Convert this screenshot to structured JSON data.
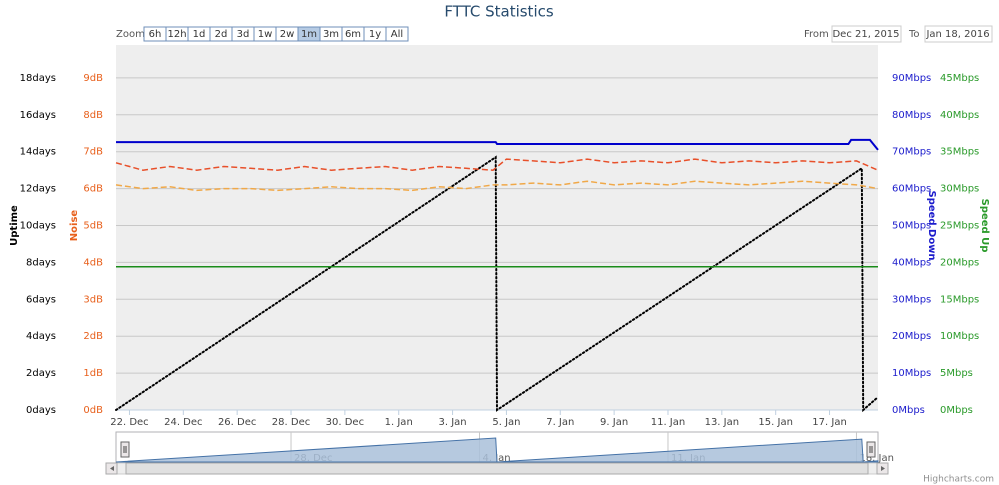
{
  "chart_data": {
    "type": "line",
    "title": "FTTC Statistics",
    "zoom": {
      "label": "Zoom",
      "buttons": [
        "6h",
        "12h",
        "1d",
        "2d",
        "3d",
        "1w",
        "2w",
        "1m",
        "3m",
        "6m",
        "1y",
        "All"
      ],
      "selected": 7
    },
    "range": {
      "from_label": "From",
      "from": "Dec 21, 2015",
      "to_label": "To",
      "to": "Jan 18, 2016"
    },
    "credits": "Highcharts.com",
    "xlim": [
      0.5,
      28.8
    ],
    "xticks": [
      {
        "value": 1,
        "label": "22. Dec"
      },
      {
        "value": 3,
        "label": "24. Dec"
      },
      {
        "value": 5,
        "label": "26. Dec"
      },
      {
        "value": 7,
        "label": "28. Dec"
      },
      {
        "value": 9,
        "label": "30. Dec"
      },
      {
        "value": 11,
        "label": "1. Jan"
      },
      {
        "value": 13,
        "label": "3. Jan"
      },
      {
        "value": 15,
        "label": "5. Jan"
      },
      {
        "value": 17,
        "label": "7. Jan"
      },
      {
        "value": 19,
        "label": "9. Jan"
      },
      {
        "value": 21,
        "label": "11. Jan"
      },
      {
        "value": 23,
        "label": "13. Jan"
      },
      {
        "value": 25,
        "label": "15. Jan"
      },
      {
        "value": 27,
        "label": "17. Jan"
      }
    ],
    "y_label": "Uptime",
    "y_color": "#000000",
    "ylim": [
      0,
      20
    ],
    "yticks": [
      {
        "value": 0,
        "label": "0days"
      },
      {
        "value": 2,
        "label": "2days"
      },
      {
        "value": 4,
        "label": "4days"
      },
      {
        "value": 6,
        "label": "6days"
      },
      {
        "value": 8,
        "label": "8days"
      },
      {
        "value": 10,
        "label": "10days"
      },
      {
        "value": 12,
        "label": "12days"
      },
      {
        "value": 14,
        "label": "14days"
      },
      {
        "value": 16,
        "label": "16days"
      },
      {
        "value": 18,
        "label": "18days"
      }
    ],
    "y2_label": "Noise",
    "y2_color": "#e8601c",
    "y2lim": [
      0,
      10
    ],
    "y2ticks": [
      {
        "value": 0,
        "label": "0dB"
      },
      {
        "value": 1,
        "label": "1dB"
      },
      {
        "value": 2,
        "label": "2dB"
      },
      {
        "value": 3,
        "label": "3dB"
      },
      {
        "value": 4,
        "label": "4dB"
      },
      {
        "value": 5,
        "label": "5dB"
      },
      {
        "value": 6,
        "label": "6dB"
      },
      {
        "value": 7,
        "label": "7dB"
      },
      {
        "value": 8,
        "label": "8dB"
      },
      {
        "value": 9,
        "label": "9dB"
      }
    ],
    "y3_label": "Speed Down",
    "y3_color": "#1c1ccc",
    "y3lim": [
      0,
      100
    ],
    "y3ticks": [
      {
        "value": 0,
        "label": "0Mbps"
      },
      {
        "value": 10,
        "label": "10Mbps"
      },
      {
        "value": 20,
        "label": "20Mbps"
      },
      {
        "value": 30,
        "label": "30Mbps"
      },
      {
        "value": 40,
        "label": "40Mbps"
      },
      {
        "value": 50,
        "label": "50Mbps"
      },
      {
        "value": 60,
        "label": "60Mbps"
      },
      {
        "value": 70,
        "label": "70Mbps"
      },
      {
        "value": 80,
        "label": "80Mbps"
      },
      {
        "value": 90,
        "label": "90Mbps"
      }
    ],
    "y4_label": "Speed Up",
    "y4_color": "#2a9a2a",
    "y4lim": [
      0,
      50
    ],
    "y4ticks": [
      {
        "value": 0,
        "label": "0Mbps"
      },
      {
        "value": 5,
        "label": "5Mbps"
      },
      {
        "value": 10,
        "label": "10Mbps"
      },
      {
        "value": 15,
        "label": "15Mbps"
      },
      {
        "value": 20,
        "label": "20Mbps"
      },
      {
        "value": 25,
        "label": "25Mbps"
      },
      {
        "value": 30,
        "label": "30Mbps"
      },
      {
        "value": 35,
        "label": "35Mbps"
      },
      {
        "value": 40,
        "label": "40Mbps"
      },
      {
        "value": 45,
        "label": "45Mbps"
      }
    ],
    "grid": true,
    "series": [
      {
        "axis": "y",
        "color": "#000000",
        "dash": "dotted",
        "x": [
          0.5,
          14.6,
          14.65,
          28.2,
          28.25,
          28.8
        ],
        "values": [
          0,
          13.7,
          0,
          13.1,
          0,
          0.7
        ]
      },
      {
        "axis": "y2",
        "color": "#e8502a",
        "dash": "dashed",
        "x": [
          0.5,
          1.5,
          2.5,
          3.5,
          4.5,
          5.5,
          6.5,
          7.5,
          8.5,
          9.5,
          10.5,
          11.5,
          12.5,
          13.5,
          14.5,
          15.0,
          16,
          17,
          18,
          19,
          20,
          21,
          22,
          23,
          24,
          25,
          26,
          27,
          28,
          28.8
        ],
        "values": [
          6.7,
          6.5,
          6.6,
          6.5,
          6.6,
          6.55,
          6.5,
          6.6,
          6.5,
          6.55,
          6.6,
          6.5,
          6.6,
          6.55,
          6.5,
          6.8,
          6.75,
          6.7,
          6.8,
          6.7,
          6.75,
          6.7,
          6.8,
          6.7,
          6.75,
          6.7,
          6.75,
          6.7,
          6.75,
          6.5
        ]
      },
      {
        "axis": "y2",
        "color": "#f0a848",
        "dash": "dashed",
        "x": [
          0.5,
          1.5,
          2.5,
          3.5,
          4.5,
          5.5,
          6.5,
          7.5,
          8.5,
          9.5,
          10.5,
          11.5,
          12.5,
          13.5,
          14.5,
          15.0,
          16,
          17,
          18,
          19,
          20,
          21,
          22,
          23,
          24,
          25,
          26,
          27,
          28,
          28.8
        ],
        "values": [
          6.1,
          6.0,
          6.05,
          5.95,
          6.0,
          6.0,
          5.95,
          6.0,
          6.05,
          6.0,
          6.0,
          5.95,
          6.05,
          6.0,
          6.1,
          6.1,
          6.15,
          6.1,
          6.2,
          6.1,
          6.15,
          6.1,
          6.2,
          6.15,
          6.1,
          6.15,
          6.2,
          6.15,
          6.1,
          6.0
        ]
      },
      {
        "axis": "y3",
        "color": "#0000cc",
        "dash": "solid",
        "x": [
          0.5,
          14.6,
          14.65,
          27.7,
          27.8,
          28.5,
          28.8
        ],
        "values": [
          72.6,
          72.6,
          72.1,
          72.1,
          73.2,
          73.2,
          70.5
        ]
      },
      {
        "axis": "y4",
        "color": "#1a8c1a",
        "dash": "solid",
        "x": [
          0.5,
          28.8
        ],
        "values": [
          19.4,
          19.4
        ]
      }
    ],
    "navigator": {
      "series": 0,
      "xticks": [
        {
          "value": 7,
          "label": "28. Dec"
        },
        {
          "value": 14,
          "label": "4. Jan"
        },
        {
          "value": 21,
          "label": "11. Jan"
        },
        {
          "value": 28,
          "label": "18. Jan"
        }
      ]
    }
  }
}
